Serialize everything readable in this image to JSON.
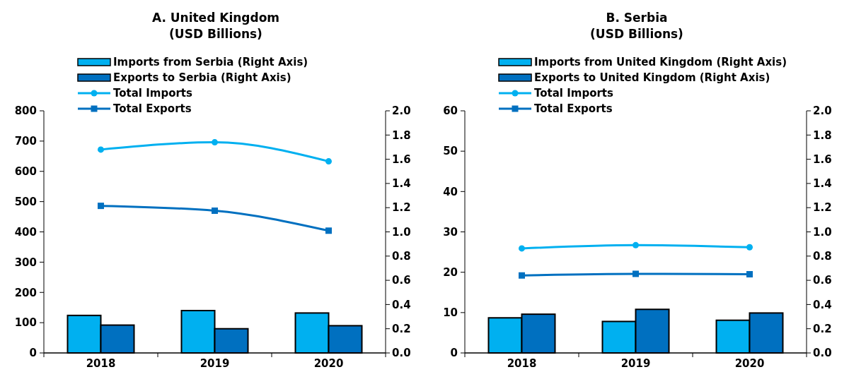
{
  "chart_data": [
    {
      "type": "bar",
      "title": "A. United Kingdom",
      "subtitle": "(USD Billions)",
      "categories": [
        "2018",
        "2019",
        "2020"
      ],
      "legend": "top left",
      "ylim": [
        0,
        800
      ],
      "yticks": [
        0,
        100,
        200,
        300,
        400,
        500,
        600,
        700,
        800
      ],
      "y2lim": [
        0,
        2
      ],
      "y2ticks": [
        {
          "value": 0,
          "label": "0.0"
        },
        {
          "value": 0.2,
          "label": "0.2"
        },
        {
          "value": 0.4,
          "label": "0.4"
        },
        {
          "value": 0.6,
          "label": "0.6"
        },
        {
          "value": 0.8,
          "label": "0.8"
        },
        {
          "value": 1,
          "label": "1.0"
        },
        {
          "value": 1.2,
          "label": "1.2"
        },
        {
          "value": 1.4,
          "label": "1.4"
        },
        {
          "value": 1.6,
          "label": "1.6"
        },
        {
          "value": 1.8,
          "label": "1.8"
        },
        {
          "value": 2,
          "label": "2.0"
        }
      ],
      "series": [
        {
          "name": "Imports from Serbia (Right Axis)",
          "axis": "y2",
          "color": "#00b0f0",
          "values": [
            0.31,
            0.35,
            0.33
          ]
        },
        {
          "name": "Exports to Serbia (Right Axis)",
          "axis": "y2",
          "color": "#0070c0",
          "values": [
            0.23,
            0.2,
            0.225
          ]
        },
        {
          "name": "Total Imports",
          "type": "line",
          "marker": "circle",
          "color": "#00b0f0",
          "values": [
            672,
            696,
            633
          ]
        },
        {
          "name": "Total Exports",
          "type": "line",
          "marker": "square",
          "color": "#0070c0",
          "values": [
            486,
            470,
            404
          ]
        }
      ]
    },
    {
      "type": "bar",
      "title": "B. Serbia",
      "subtitle": "(USD Billions)",
      "categories": [
        "2018",
        "2019",
        "2020"
      ],
      "legend": "top left",
      "ylim": [
        0,
        60
      ],
      "yticks": [
        0,
        10,
        20,
        30,
        40,
        50,
        60
      ],
      "y2lim": [
        0,
        2
      ],
      "y2ticks": [
        {
          "value": 0,
          "label": "0.0"
        },
        {
          "value": 0.2,
          "label": "0.2"
        },
        {
          "value": 0.4,
          "label": "0.4"
        },
        {
          "value": 0.6,
          "label": "0.6"
        },
        {
          "value": 0.8,
          "label": "0.8"
        },
        {
          "value": 1,
          "label": "1.0"
        },
        {
          "value": 1.2,
          "label": "1.2"
        },
        {
          "value": 1.4,
          "label": "1.4"
        },
        {
          "value": 1.6,
          "label": "1.6"
        },
        {
          "value": 1.8,
          "label": "1.8"
        },
        {
          "value": 2,
          "label": "2.0"
        }
      ],
      "series": [
        {
          "name": "Imports from United Kingdom (Right Axis)",
          "axis": "y2",
          "color": "#00b0f0",
          "values": [
            0.29,
            0.26,
            0.27
          ]
        },
        {
          "name": "Exports to United Kingdom (Right Axis)",
          "axis": "y2",
          "color": "#0070c0",
          "values": [
            0.32,
            0.36,
            0.33
          ]
        },
        {
          "name": "Total Imports",
          "type": "line",
          "marker": "circle",
          "color": "#00b0f0",
          "values": [
            25.9,
            26.7,
            26.2
          ]
        },
        {
          "name": "Total Exports",
          "type": "line",
          "marker": "square",
          "color": "#0070c0",
          "values": [
            19.2,
            19.6,
            19.5
          ]
        }
      ]
    }
  ]
}
